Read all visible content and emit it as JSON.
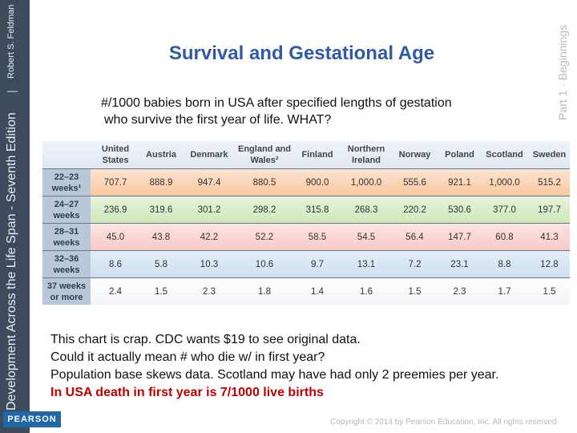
{
  "sidebar": {
    "book": "Development Across the Life Span - Seventh Edition",
    "author": "Robert S. Feldman",
    "logo": "PEARSON",
    "part": "Part 1 · Beginnings"
  },
  "header": {
    "title": "Survival and Gestational Age",
    "subtitle": [
      "#/1000 babies born in USA after specified lengths of gestation",
      "who survive the first year of life. WHAT?"
    ]
  },
  "table": {
    "columns": [
      "United States",
      "Austria",
      "Denmark",
      "England and Wales²",
      "Finland",
      "Northern Ireland",
      "Norway",
      "Poland",
      "Scotland",
      "Sweden"
    ],
    "row_labels": [
      "22–23 weeks¹",
      "24–27 weeks",
      "28–31 weeks",
      "32–36 weeks",
      "37 weeks or more"
    ],
    "rows": [
      [
        "707.7",
        "888.9",
        "947.4",
        "880.5",
        "900.0",
        "1,000.0",
        "555.6",
        "921.1",
        "1,000.0",
        "515.2"
      ],
      [
        "236.9",
        "319.6",
        "301.2",
        "298.2",
        "315.8",
        "268.3",
        "220.2",
        "530.6",
        "377.0",
        "197.7"
      ],
      [
        "45.0",
        "43.8",
        "42.2",
        "52.2",
        "58.5",
        "54.5",
        "56.4",
        "147.7",
        "60.8",
        "41.3"
      ],
      [
        "8.6",
        "5.8",
        "10.3",
        "10.6",
        "9.7",
        "13.1",
        "7.2",
        "23.1",
        "8.8",
        "12.8"
      ],
      [
        "2.4",
        "1.5",
        "2.3",
        "1.8",
        "1.4",
        "1.6",
        "1.5",
        "2.3",
        "1.7",
        "1.5"
      ]
    ]
  },
  "notes": [
    "This chart is crap. CDC wants $19 to see original data.",
    "Could it actually mean # who die w/ in first year?",
    "Population base skews data. Scotland may have had only 2 preemies per year.",
    "In USA death in first year is 7/1000 live births"
  ],
  "footer": {
    "copyright": "Copyright © 2014 by Pearson Education, Inc. All rights reserved"
  }
}
